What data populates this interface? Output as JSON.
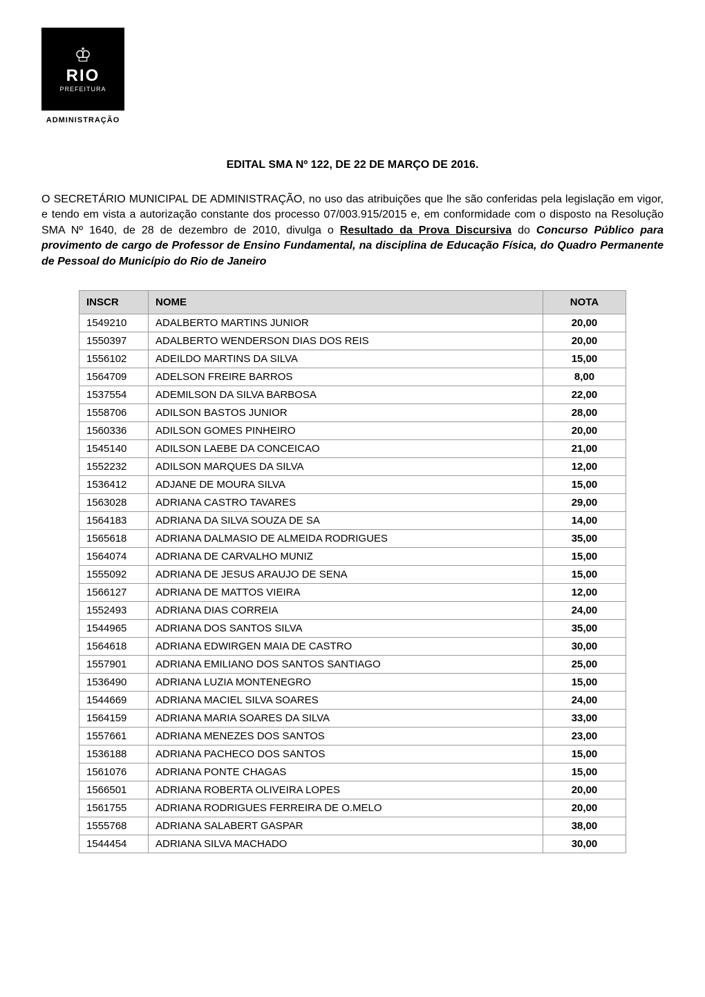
{
  "logo": {
    "rio": "RIO",
    "prefeitura": "PREFEITURA",
    "administracao": "ADMINISTRAÇÃO"
  },
  "edital_title": {
    "prefix": "EDITAL ",
    "sma": "SMA",
    "num": " Nº 122, ",
    "de": "DE",
    "date": " 22 ",
    "de2": "DE MARÇO DE",
    "year": " 2016."
  },
  "body": {
    "part1": "O SECRETÁRIO MUNICIPAL DE ADMINISTRAÇÃO, no uso das atribuições que lhe são conferidas pela legislação em vigor, e tendo em vista a autorização constante dos processo 07/003.915/2015 e, em conformidade com o disposto na Resolução SMA Nº 1640, de 28 de dezembro de 2010, divulga o ",
    "underlined": "Resultado da Prova Discursiva",
    "part2": " do ",
    "bold_italic": "Concurso Público para provimento de cargo de Professor de Ensino Fundamental, na disciplina de Educação Física, do Quadro Permanente de Pessoal do Município do Rio de Janeiro"
  },
  "table": {
    "headers": {
      "inscr": "INSCR",
      "nome": "NOME",
      "nota": "NOTA"
    },
    "rows": [
      {
        "inscr": "1549210",
        "nome": "ADALBERTO MARTINS JUNIOR",
        "nota": "20,00"
      },
      {
        "inscr": "1550397",
        "nome": "ADALBERTO WENDERSON DIAS DOS REIS",
        "nota": "20,00"
      },
      {
        "inscr": "1556102",
        "nome": "ADEILDO MARTINS DA SILVA",
        "nota": "15,00"
      },
      {
        "inscr": "1564709",
        "nome": "ADELSON FREIRE BARROS",
        "nota": "8,00"
      },
      {
        "inscr": "1537554",
        "nome": "ADEMILSON DA SILVA BARBOSA",
        "nota": "22,00"
      },
      {
        "inscr": "1558706",
        "nome": "ADILSON BASTOS JUNIOR",
        "nota": "28,00"
      },
      {
        "inscr": "1560336",
        "nome": "ADILSON GOMES PINHEIRO",
        "nota": "20,00"
      },
      {
        "inscr": "1545140",
        "nome": "ADILSON LAEBE DA CONCEICAO",
        "nota": "21,00"
      },
      {
        "inscr": "1552232",
        "nome": "ADILSON MARQUES DA SILVA",
        "nota": "12,00"
      },
      {
        "inscr": "1536412",
        "nome": "ADJANE DE MOURA SILVA",
        "nota": "15,00"
      },
      {
        "inscr": "1563028",
        "nome": "ADRIANA CASTRO TAVARES",
        "nota": "29,00"
      },
      {
        "inscr": "1564183",
        "nome": "ADRIANA DA SILVA SOUZA DE SA",
        "nota": "14,00"
      },
      {
        "inscr": "1565618",
        "nome": "ADRIANA DALMASIO DE ALMEIDA RODRIGUES",
        "nota": "35,00"
      },
      {
        "inscr": "1564074",
        "nome": "ADRIANA DE CARVALHO MUNIZ",
        "nota": "15,00"
      },
      {
        "inscr": "1555092",
        "nome": "ADRIANA DE JESUS ARAUJO DE SENA",
        "nota": "15,00"
      },
      {
        "inscr": "1566127",
        "nome": "ADRIANA DE MATTOS VIEIRA",
        "nota": "12,00"
      },
      {
        "inscr": "1552493",
        "nome": "ADRIANA DIAS CORREIA",
        "nota": "24,00"
      },
      {
        "inscr": "1544965",
        "nome": "ADRIANA DOS SANTOS SILVA",
        "nota": "35,00"
      },
      {
        "inscr": "1564618",
        "nome": "ADRIANA EDWIRGEN MAIA DE CASTRO",
        "nota": "30,00"
      },
      {
        "inscr": "1557901",
        "nome": "ADRIANA EMILIANO DOS SANTOS SANTIAGO",
        "nota": "25,00"
      },
      {
        "inscr": "1536490",
        "nome": "ADRIANA LUZIA MONTENEGRO",
        "nota": "15,00"
      },
      {
        "inscr": "1544669",
        "nome": "ADRIANA MACIEL SILVA SOARES",
        "nota": "24,00"
      },
      {
        "inscr": "1564159",
        "nome": "ADRIANA MARIA SOARES DA SILVA",
        "nota": "33,00"
      },
      {
        "inscr": "1557661",
        "nome": "ADRIANA MENEZES DOS SANTOS",
        "nota": "23,00"
      },
      {
        "inscr": "1536188",
        "nome": "ADRIANA PACHECO DOS SANTOS",
        "nota": "15,00"
      },
      {
        "inscr": "1561076",
        "nome": "ADRIANA PONTE CHAGAS",
        "nota": "15,00"
      },
      {
        "inscr": "1566501",
        "nome": "ADRIANA ROBERTA OLIVEIRA LOPES",
        "nota": "20,00"
      },
      {
        "inscr": "1561755",
        "nome": "ADRIANA RODRIGUES FERREIRA DE O.MELO",
        "nota": "20,00"
      },
      {
        "inscr": "1555768",
        "nome": "ADRIANA SALABERT GASPAR",
        "nota": "38,00"
      },
      {
        "inscr": "1544454",
        "nome": "ADRIANA SILVA MACHADO",
        "nota": "30,00"
      }
    ]
  },
  "styling": {
    "body_bg": "#ffffff",
    "logo_bg": "#000000",
    "logo_fg": "#ffffff",
    "th_bg": "#d9d9d9",
    "border_color": "#999999",
    "text_color": "#000000",
    "body_width": 1020,
    "body_height": 1443,
    "title_fontsize": 16,
    "body_fontsize": 16,
    "table_fontsize": 15
  }
}
